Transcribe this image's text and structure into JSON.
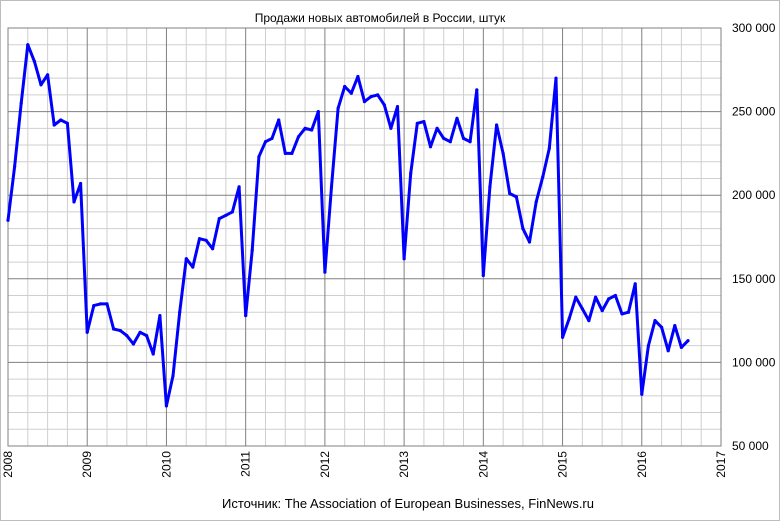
{
  "chart_data": {
    "type": "line",
    "title": "Продажи новых автомобилей в России, штук",
    "source": "Источник: The Association of European Businesses, FinNews.ru",
    "xlabel": "",
    "ylabel": "",
    "x_tick_labels": [
      "2008",
      "2009",
      "2010",
      "2011",
      "2012",
      "2013",
      "2014",
      "2015",
      "2016",
      "2017"
    ],
    "y_tick_labels": [
      "50 000",
      "100 000",
      "150 000",
      "200 000",
      "250 000",
      "300 000"
    ],
    "xlim": [
      2008,
      2017
    ],
    "ylim": [
      50000,
      300000
    ],
    "grid": true,
    "legend": "none",
    "line_color": "#0000ff",
    "series": [
      {
        "x": [
          2008.0,
          2008.083,
          2008.167,
          2008.25,
          2008.333,
          2008.417,
          2008.5,
          2008.583,
          2008.667,
          2008.75,
          2008.833,
          2008.917,
          2009.0,
          2009.083,
          2009.167,
          2009.25,
          2009.333,
          2009.417,
          2009.5,
          2009.583,
          2009.667,
          2009.75,
          2009.833,
          2009.917,
          2010.0,
          2010.083,
          2010.167,
          2010.25,
          2010.333,
          2010.417,
          2010.5,
          2010.583,
          2010.667,
          2010.75,
          2010.833,
          2010.917,
          2011.0,
          2011.083,
          2011.167,
          2011.25,
          2011.333,
          2011.417,
          2011.5,
          2011.583,
          2011.667,
          2011.75,
          2011.833,
          2011.917,
          2012.0,
          2012.083,
          2012.167,
          2012.25,
          2012.333,
          2012.417,
          2012.5,
          2012.583,
          2012.667,
          2012.75,
          2012.833,
          2012.917,
          2013.0,
          2013.083,
          2013.167,
          2013.25,
          2013.333,
          2013.417,
          2013.5,
          2013.583,
          2013.667,
          2013.75,
          2013.833,
          2013.917,
          2014.0,
          2014.083,
          2014.167,
          2014.25,
          2014.333,
          2014.417,
          2014.5,
          2014.583,
          2014.667,
          2014.75,
          2014.833,
          2014.917,
          2015.0,
          2015.083,
          2015.167,
          2015.25,
          2015.333,
          2015.417,
          2015.5,
          2015.583,
          2015.667,
          2015.75,
          2015.833,
          2015.917,
          2016.0,
          2016.083,
          2016.167,
          2016.25,
          2016.333,
          2016.417,
          2016.5,
          2016.583
        ],
        "values": [
          185000,
          217000,
          255000,
          290000,
          280000,
          266000,
          272000,
          242000,
          245000,
          243000,
          196000,
          207000,
          118000,
          134000,
          135000,
          135000,
          120000,
          119000,
          116000,
          111000,
          118000,
          116000,
          105000,
          128000,
          74000,
          92000,
          130000,
          162000,
          157000,
          174000,
          173000,
          168000,
          186000,
          188000,
          190000,
          205000,
          128000,
          167000,
          223000,
          232000,
          234000,
          245000,
          225000,
          225000,
          235000,
          240000,
          239000,
          250000,
          154000,
          205000,
          252000,
          265000,
          261000,
          271000,
          256000,
          259000,
          260000,
          254000,
          240000,
          253000,
          162000,
          213000,
          243000,
          244000,
          229000,
          240000,
          234000,
          232000,
          246000,
          234000,
          232000,
          263000,
          152000,
          205000,
          242000,
          225000,
          201000,
          199000,
          180000,
          172000,
          196000,
          211000,
          228000,
          270000,
          115000,
          126000,
          139000,
          132000,
          125000,
          139000,
          131000,
          138000,
          140000,
          129000,
          130000,
          147000,
          81000,
          110000,
          125000,
          121000,
          107000,
          122000,
          109000,
          113000
        ]
      }
    ]
  }
}
